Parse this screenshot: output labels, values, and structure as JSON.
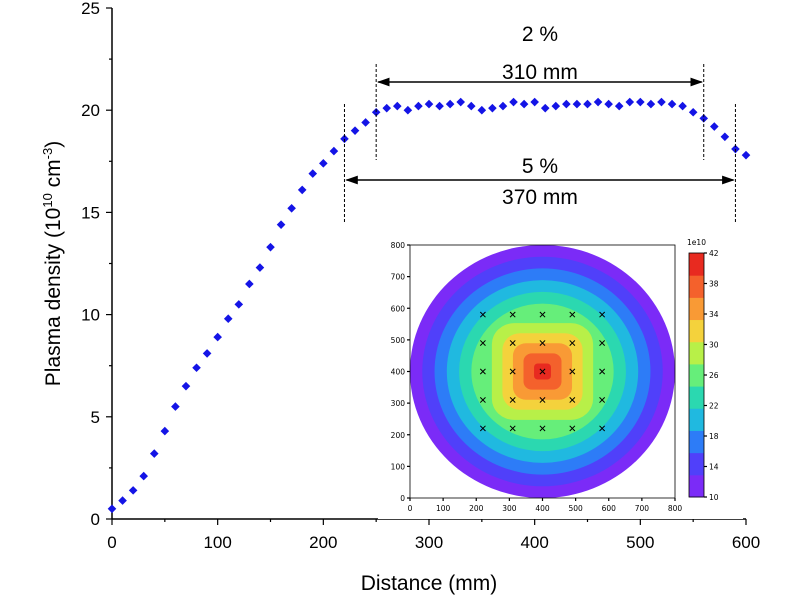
{
  "chart_data": [
    {
      "type": "scatter",
      "xlabel": "Distance (mm)",
      "ylabel": {
        "base": "Plasma density (10",
        "exp1": "10",
        "mid": " cm",
        "exp2": "-3",
        "end": ")"
      },
      "xlim": [
        0,
        600
      ],
      "ylim": [
        0,
        25
      ],
      "xticks": [
        0,
        100,
        200,
        300,
        400,
        500,
        600
      ],
      "yticks": [
        0,
        5,
        10,
        15,
        20,
        25
      ],
      "marker": "diamond",
      "marker_color": "#1414e6",
      "series": [
        {
          "x": [
            0,
            10,
            20,
            30,
            40,
            50,
            60,
            70,
            80,
            90,
            100,
            110,
            120,
            130,
            140,
            150,
            160,
            170,
            180,
            190,
            200,
            210,
            220,
            230,
            240,
            250,
            260,
            270,
            280,
            290,
            300,
            310,
            320,
            330,
            340,
            350,
            360,
            370,
            380,
            390,
            400,
            410,
            420,
            430,
            440,
            450,
            460,
            470,
            480,
            490,
            500,
            510,
            520,
            530,
            540,
            550,
            560,
            570,
            580,
            590,
            600
          ],
          "values": [
            0.5,
            0.9,
            1.4,
            2.1,
            3.2,
            4.3,
            5.5,
            6.5,
            7.4,
            8.1,
            8.9,
            9.8,
            10.5,
            11.5,
            12.3,
            13.3,
            14.4,
            15.2,
            16.1,
            16.9,
            17.4,
            18.0,
            18.6,
            19.0,
            19.4,
            19.9,
            20.1,
            20.2,
            20.0,
            20.2,
            20.3,
            20.2,
            20.3,
            20.4,
            20.2,
            20.0,
            20.1,
            20.2,
            20.4,
            20.3,
            20.4,
            20.1,
            20.2,
            20.3,
            20.3,
            20.3,
            20.4,
            20.3,
            20.2,
            20.4,
            20.4,
            20.3,
            20.4,
            20.3,
            20.2,
            19.9,
            19.6,
            19.2,
            18.7,
            18.1,
            17.8
          ]
        }
      ],
      "annotations": [
        {
          "percent": "2 %",
          "span": "310 mm",
          "x_start": 250,
          "x_end": 560
        },
        {
          "percent": "5 %",
          "span": "370 mm",
          "x_start": 220,
          "x_end": 590
        }
      ]
    },
    {
      "type": "heatmap",
      "title": "",
      "xlim": [
        0,
        800
      ],
      "ylim": [
        0,
        800
      ],
      "xticks": [
        0,
        100,
        200,
        300,
        400,
        500,
        600,
        700,
        800
      ],
      "yticks": [
        0,
        100,
        200,
        300,
        400,
        500,
        600,
        700,
        800
      ],
      "colorbar_label": "1e10",
      "colorbar_ticks": [
        10,
        14,
        18,
        22,
        26,
        30,
        34,
        38,
        42
      ],
      "colorbar_range": [
        10,
        42
      ],
      "wafer_center": [
        400,
        400
      ],
      "wafer_radius": 400,
      "measurement_points_x": [
        220,
        310,
        400,
        490,
        580
      ],
      "measurement_points_y": [
        220,
        310,
        400,
        490,
        580
      ],
      "colors": [
        "#7b2bf7",
        "#5040fa",
        "#2d7cf7",
        "#20b9e0",
        "#2bd8b0",
        "#66ee7a",
        "#b8f048",
        "#f4d23c",
        "#f99a35",
        "#f4612c",
        "#e82a20"
      ]
    }
  ]
}
